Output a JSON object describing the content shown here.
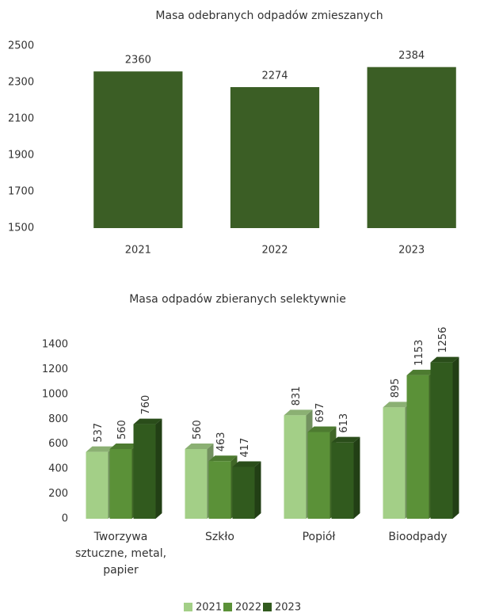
{
  "chart_data": [
    {
      "type": "bar",
      "title": "Masa odebranych odpadów zmieszanych",
      "categories": [
        "2021",
        "2022",
        "2023"
      ],
      "values": [
        2360,
        2274,
        2384
      ],
      "color": "#3b5e25",
      "ylim": [
        1500,
        2500
      ],
      "yticks": [
        1500,
        1700,
        1900,
        2100,
        2300,
        2500
      ]
    },
    {
      "type": "bar3d",
      "title": "Masa odpadów zbieranych selektywnie",
      "categories": [
        "Tworzywa sztuczne, metal, papier",
        "Szkło",
        "Popiół",
        "Bioodpady"
      ],
      "series": [
        {
          "name": "2021",
          "color": "#a3cf87",
          "values": [
            537,
            560,
            831,
            895
          ]
        },
        {
          "name": "2022",
          "color": "#5b9138",
          "values": [
            560,
            463,
            697,
            1153
          ]
        },
        {
          "name": "2023",
          "color": "#315a1e",
          "values": [
            760,
            417,
            613,
            1256
          ]
        }
      ],
      "ylim": [
        0,
        1400
      ],
      "yticks": [
        0,
        200,
        400,
        600,
        800,
        1000,
        1200,
        1400
      ],
      "legend": "bottom"
    }
  ]
}
